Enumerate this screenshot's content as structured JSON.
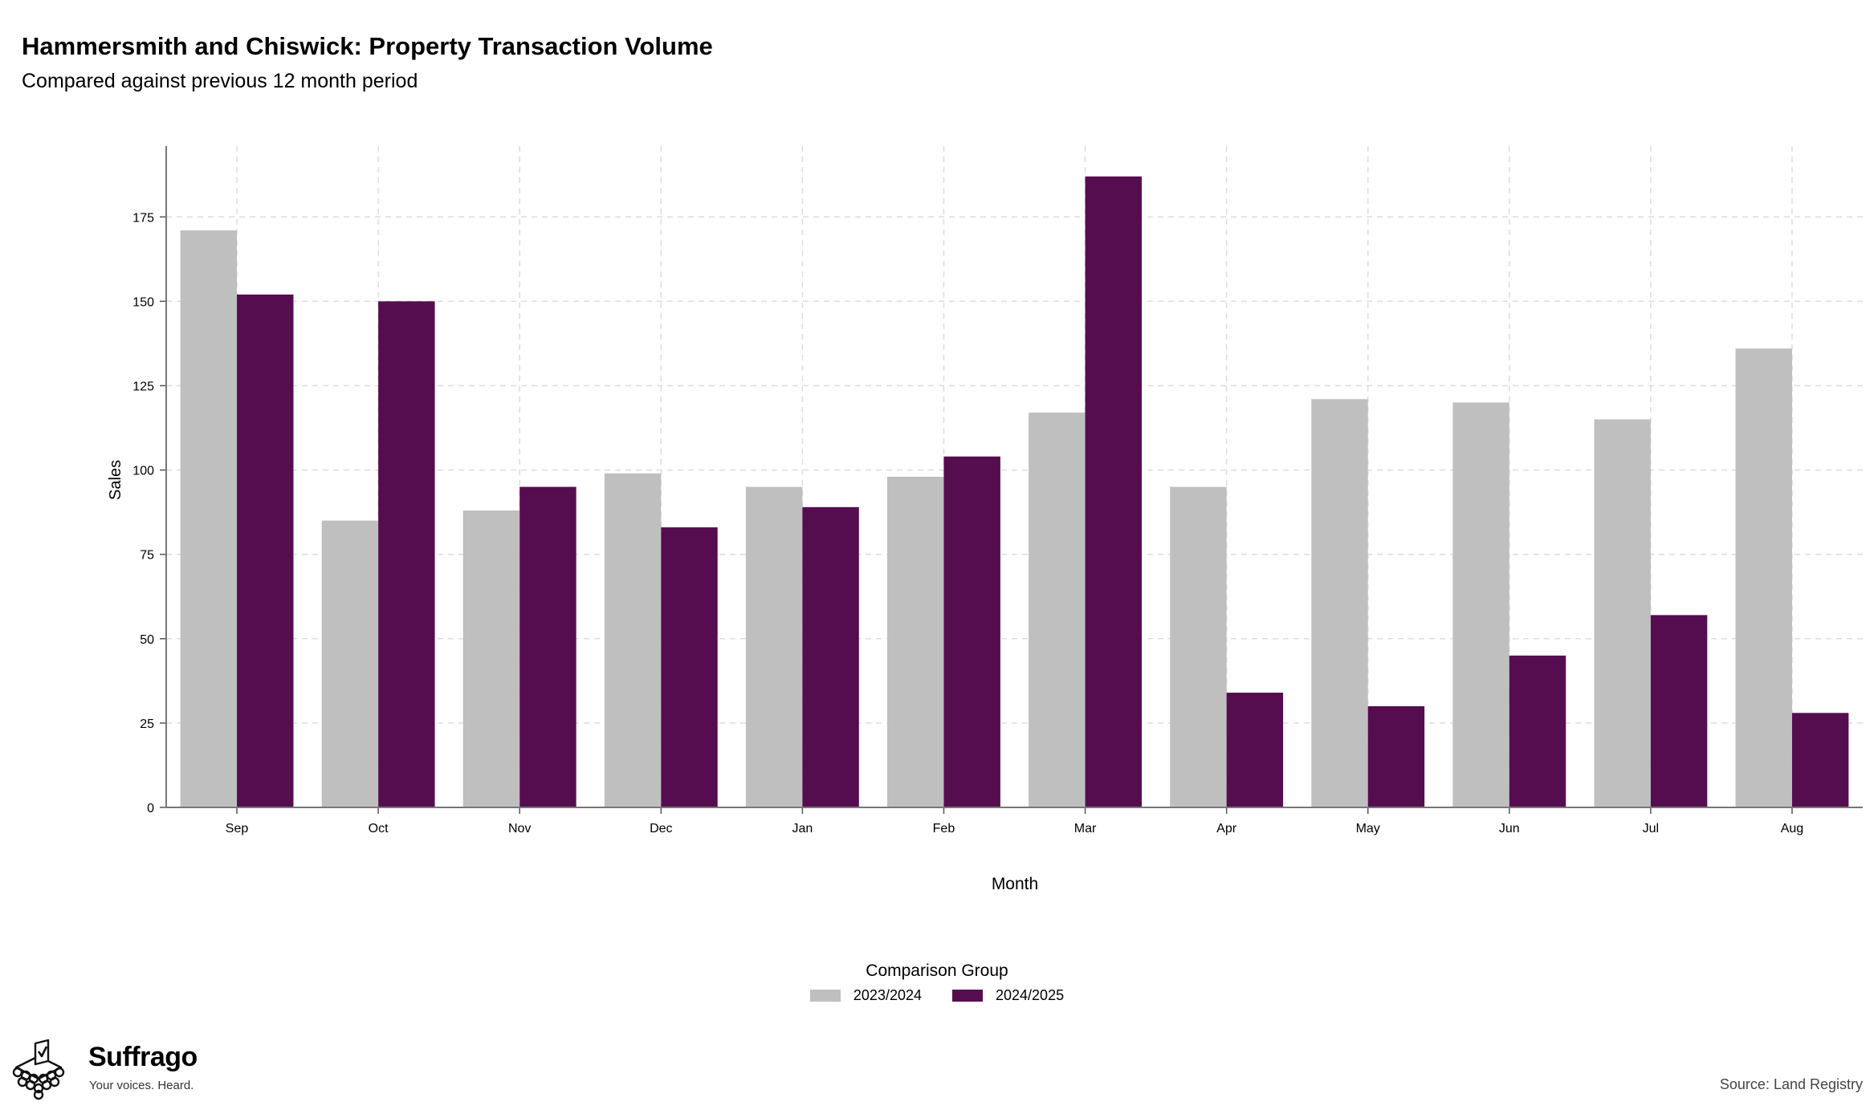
{
  "title": "Hammersmith and Chiswick: Property Transaction Volume",
  "subtitle": "Compared against previous 12 month period",
  "chart_data": {
    "type": "bar",
    "categories": [
      "Sep",
      "Oct",
      "Nov",
      "Dec",
      "Jan",
      "Feb",
      "Mar",
      "Apr",
      "May",
      "Jun",
      "Jul",
      "Aug"
    ],
    "series": [
      {
        "name": "2023/2024",
        "color": "#bfbfbf",
        "values": [
          171,
          85,
          88,
          99,
          95,
          98,
          117,
          95,
          121,
          120,
          115,
          136
        ]
      },
      {
        "name": "2024/2025",
        "color": "#560d50",
        "values": [
          152,
          150,
          95,
          83,
          89,
          104,
          187,
          34,
          30,
          45,
          57,
          28
        ]
      }
    ],
    "xlabel": "Month",
    "ylabel": "Sales",
    "ylim": [
      0,
      196
    ],
    "yticks": [
      0,
      25,
      50,
      75,
      100,
      125,
      150,
      175
    ],
    "grid": true,
    "legend_title": "Comparison Group",
    "legend_position": "bottom"
  },
  "logo": {
    "name": "Suffrago",
    "tagline": "Your voices. Heard."
  },
  "source": "Source: Land Registry"
}
